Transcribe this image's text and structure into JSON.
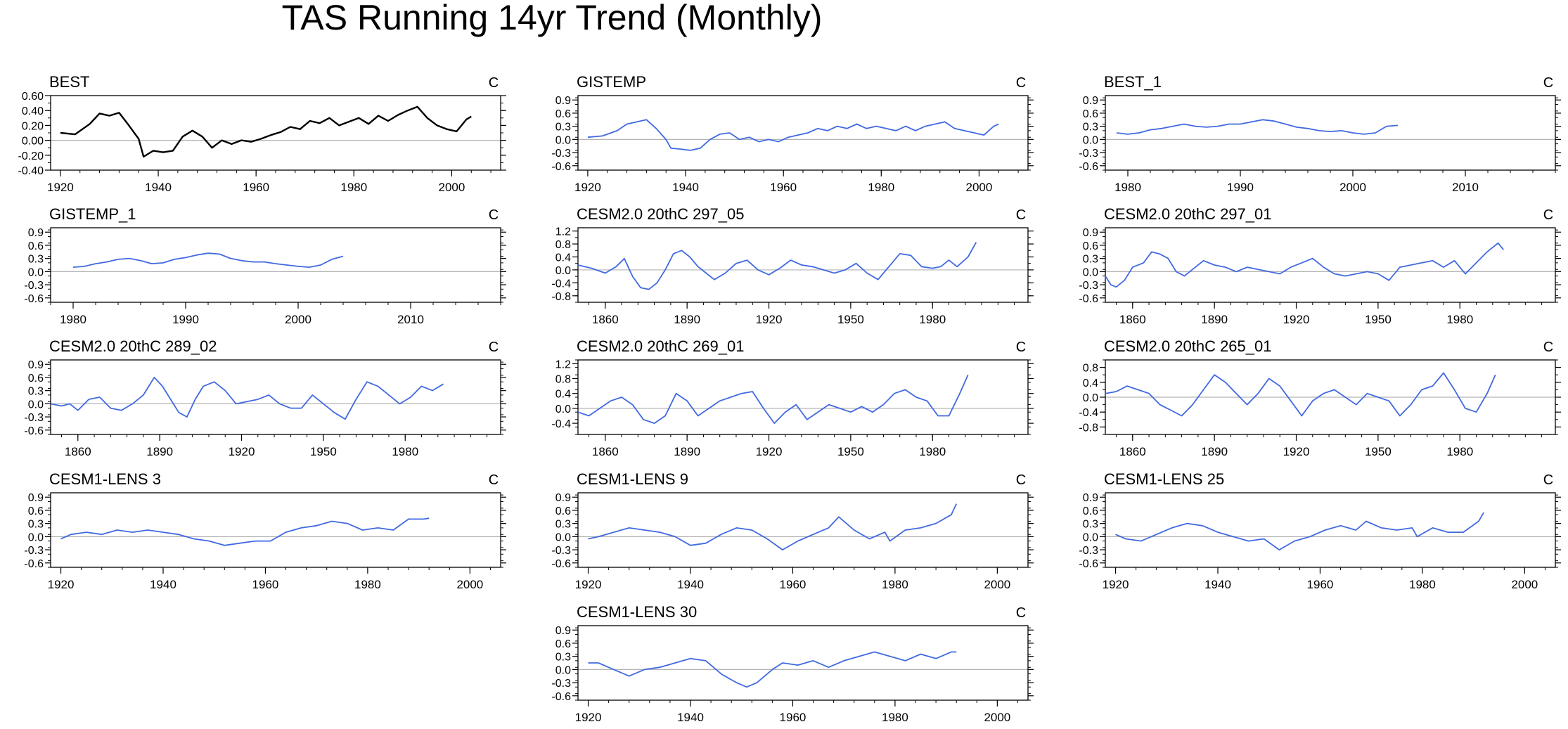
{
  "title": "TAS Running 14yr Trend (Monthly)",
  "colors": {
    "obs": "#000000",
    "model": "#4169e1",
    "zero": "#b4b4b4",
    "axis": "#000000"
  },
  "chart_data": [
    {
      "type": "line",
      "title": "BEST",
      "units": "C",
      "color": "obs",
      "xlim": [
        1918,
        2010
      ],
      "ylim": [
        -0.4,
        0.6
      ],
      "yticks": [
        -0.4,
        -0.2,
        0.0,
        0.2,
        0.4,
        0.6
      ],
      "yticklabels": [
        "-0.40",
        "-0.20",
        "0.00",
        "0.20",
        "0.40",
        "0.60"
      ],
      "xticks": [
        1920,
        1940,
        1960,
        1980,
        2000
      ],
      "x": [
        1920,
        1923,
        1926,
        1928,
        1930,
        1932,
        1934,
        1936,
        1937,
        1939,
        1941,
        1943,
        1945,
        1947,
        1949,
        1951,
        1953,
        1955,
        1957,
        1959,
        1961,
        1963,
        1965,
        1967,
        1969,
        1971,
        1973,
        1975,
        1977,
        1979,
        1981,
        1983,
        1985,
        1987,
        1989,
        1991,
        1993,
        1995,
        1997,
        1999,
        2001,
        2003,
        2004
      ],
      "y": [
        0.1,
        0.08,
        0.22,
        0.36,
        0.33,
        0.37,
        0.2,
        0.02,
        -0.22,
        -0.14,
        -0.16,
        -0.14,
        0.05,
        0.13,
        0.05,
        -0.1,
        0.0,
        -0.05,
        0.0,
        -0.02,
        0.02,
        0.07,
        0.11,
        0.18,
        0.15,
        0.26,
        0.23,
        0.3,
        0.2,
        0.25,
        0.3,
        0.22,
        0.33,
        0.26,
        0.34,
        0.4,
        0.45,
        0.3,
        0.2,
        0.15,
        0.12,
        0.28,
        0.32
      ]
    },
    {
      "type": "line",
      "title": "GISTEMP",
      "units": "C",
      "color": "model",
      "xlim": [
        1918,
        2010
      ],
      "ylim": [
        -0.7,
        1.0
      ],
      "yticks": [
        -0.6,
        -0.3,
        0.0,
        0.3,
        0.6,
        0.9
      ],
      "yticklabels": [
        "-0.6",
        "-0.3",
        "0.0",
        "0.3",
        "0.6",
        "0.9"
      ],
      "xticks": [
        1920,
        1940,
        1960,
        1980,
        2000
      ],
      "x": [
        1920,
        1923,
        1926,
        1928,
        1930,
        1932,
        1934,
        1936,
        1937,
        1939,
        1941,
        1943,
        1945,
        1947,
        1949,
        1951,
        1953,
        1955,
        1957,
        1959,
        1961,
        1963,
        1965,
        1967,
        1969,
        1971,
        1973,
        1975,
        1977,
        1979,
        1981,
        1983,
        1985,
        1987,
        1989,
        1991,
        1993,
        1995,
        1997,
        1999,
        2001,
        2003,
        2004
      ],
      "y": [
        0.05,
        0.08,
        0.2,
        0.35,
        0.4,
        0.45,
        0.25,
        0.0,
        -0.2,
        -0.22,
        -0.25,
        -0.2,
        0.0,
        0.12,
        0.15,
        0.0,
        0.05,
        -0.05,
        0.0,
        -0.05,
        0.05,
        0.1,
        0.15,
        0.25,
        0.2,
        0.3,
        0.25,
        0.35,
        0.25,
        0.3,
        0.25,
        0.2,
        0.3,
        0.2,
        0.3,
        0.35,
        0.4,
        0.25,
        0.2,
        0.15,
        0.1,
        0.3,
        0.35
      ]
    },
    {
      "type": "line",
      "title": "BEST_1",
      "units": "C",
      "color": "model",
      "xlim": [
        1978,
        2018
      ],
      "ylim": [
        -0.7,
        1.0
      ],
      "yticks": [
        -0.6,
        -0.3,
        0.0,
        0.3,
        0.6,
        0.9
      ],
      "yticklabels": [
        "-0.6",
        "-0.3",
        "0.0",
        "0.3",
        "0.6",
        "0.9"
      ],
      "xticks": [
        1980,
        1990,
        2000,
        2010
      ],
      "x": [
        1979,
        1980,
        1981,
        1982,
        1983,
        1984,
        1985,
        1986,
        1987,
        1988,
        1989,
        1990,
        1991,
        1992,
        1993,
        1994,
        1995,
        1996,
        1997,
        1998,
        1999,
        2000,
        2001,
        2002,
        2003,
        2004
      ],
      "y": [
        0.15,
        0.12,
        0.15,
        0.22,
        0.25,
        0.3,
        0.35,
        0.3,
        0.28,
        0.3,
        0.35,
        0.35,
        0.4,
        0.45,
        0.42,
        0.35,
        0.28,
        0.25,
        0.2,
        0.18,
        0.2,
        0.15,
        0.12,
        0.15,
        0.3,
        0.32
      ]
    },
    {
      "type": "line",
      "title": "GISTEMP_1",
      "units": "C",
      "color": "model",
      "xlim": [
        1978,
        2018
      ],
      "ylim": [
        -0.7,
        1.0
      ],
      "yticks": [
        -0.6,
        -0.3,
        0.0,
        0.3,
        0.6,
        0.9
      ],
      "yticklabels": [
        "-0.6",
        "-0.3",
        "0.0",
        "0.3",
        "0.6",
        "0.9"
      ],
      "xticks": [
        1980,
        1990,
        2000,
        2010
      ],
      "x": [
        1980,
        1981,
        1982,
        1983,
        1984,
        1985,
        1986,
        1987,
        1988,
        1989,
        1990,
        1991,
        1992,
        1993,
        1994,
        1995,
        1996,
        1997,
        1998,
        1999,
        2000,
        2001,
        2002,
        2003,
        2004
      ],
      "y": [
        0.1,
        0.12,
        0.18,
        0.22,
        0.28,
        0.3,
        0.25,
        0.18,
        0.2,
        0.28,
        0.32,
        0.38,
        0.42,
        0.4,
        0.3,
        0.25,
        0.22,
        0.22,
        0.18,
        0.15,
        0.12,
        0.1,
        0.15,
        0.28,
        0.35
      ]
    },
    {
      "type": "line",
      "title": "CESM2.0 20thC 297_05",
      "units": "C",
      "color": "model",
      "xlim": [
        1850,
        2015
      ],
      "ylim": [
        -1.0,
        1.3
      ],
      "yticks": [
        -0.8,
        -0.4,
        0.0,
        0.4,
        0.8,
        1.2
      ],
      "yticklabels": [
        "-0.8",
        "-0.4",
        "0.0",
        "0.4",
        "0.8",
        "1.2"
      ],
      "xticks": [
        1860,
        1890,
        1920,
        1950,
        1980
      ],
      "x": [
        1850,
        1855,
        1860,
        1864,
        1867,
        1870,
        1873,
        1876,
        1879,
        1882,
        1885,
        1888,
        1891,
        1894,
        1897,
        1900,
        1904,
        1908,
        1912,
        1916,
        1920,
        1924,
        1928,
        1932,
        1936,
        1940,
        1944,
        1948,
        1952,
        1956,
        1960,
        1964,
        1968,
        1972,
        1976,
        1980,
        1983,
        1986,
        1989,
        1993,
        1996
      ],
      "y": [
        0.15,
        0.05,
        -0.1,
        0.1,
        0.35,
        -0.2,
        -0.55,
        -0.6,
        -0.4,
        0.0,
        0.5,
        0.6,
        0.4,
        0.1,
        -0.1,
        -0.3,
        -0.1,
        0.2,
        0.3,
        0.0,
        -0.15,
        0.05,
        0.3,
        0.15,
        0.1,
        0.0,
        -0.1,
        0.0,
        0.2,
        -0.1,
        -0.3,
        0.1,
        0.5,
        0.45,
        0.1,
        0.05,
        0.1,
        0.3,
        0.1,
        0.4,
        0.85
      ]
    },
    {
      "type": "line",
      "title": "CESM2.0 20thC 297_01",
      "units": "C",
      "color": "model",
      "xlim": [
        1850,
        2015
      ],
      "ylim": [
        -0.7,
        1.0
      ],
      "yticks": [
        -0.6,
        -0.3,
        0.0,
        0.3,
        0.6,
        0.9
      ],
      "yticklabels": [
        "-0.6",
        "-0.3",
        "0.0",
        "0.3",
        "0.6",
        "0.9"
      ],
      "xticks": [
        1860,
        1890,
        1920,
        1950,
        1980
      ],
      "x": [
        1850,
        1852,
        1854,
        1857,
        1860,
        1864,
        1867,
        1870,
        1873,
        1876,
        1879,
        1882,
        1886,
        1890,
        1894,
        1898,
        1902,
        1906,
        1910,
        1914,
        1918,
        1922,
        1926,
        1930,
        1934,
        1938,
        1942,
        1946,
        1950,
        1954,
        1958,
        1962,
        1966,
        1970,
        1974,
        1978,
        1982,
        1986,
        1990,
        1994,
        1996
      ],
      "y": [
        -0.1,
        -0.3,
        -0.35,
        -0.2,
        0.1,
        0.2,
        0.45,
        0.4,
        0.3,
        0.0,
        -0.1,
        0.05,
        0.25,
        0.15,
        0.1,
        0.0,
        0.1,
        0.05,
        0.0,
        -0.05,
        0.1,
        0.2,
        0.3,
        0.1,
        -0.05,
        -0.1,
        -0.05,
        0.0,
        -0.05,
        -0.2,
        0.1,
        0.15,
        0.2,
        0.25,
        0.1,
        0.25,
        -0.05,
        0.2,
        0.45,
        0.65,
        0.5
      ]
    },
    {
      "type": "line",
      "title": "CESM2.0 20thC 289_02",
      "units": "C",
      "color": "model",
      "xlim": [
        1850,
        2015
      ],
      "ylim": [
        -0.7,
        1.0
      ],
      "yticks": [
        -0.6,
        -0.3,
        0.0,
        0.3,
        0.6,
        0.9
      ],
      "yticklabels": [
        "-0.6",
        "-0.3",
        "0.0",
        "0.3",
        "0.6",
        "0.9"
      ],
      "xticks": [
        1860,
        1890,
        1920,
        1950,
        1980
      ],
      "x": [
        1850,
        1854,
        1857,
        1860,
        1864,
        1868,
        1872,
        1876,
        1880,
        1884,
        1888,
        1891,
        1894,
        1897,
        1900,
        1903,
        1906,
        1910,
        1914,
        1918,
        1922,
        1926,
        1930,
        1934,
        1938,
        1942,
        1946,
        1950,
        1954,
        1958,
        1962,
        1966,
        1970,
        1974,
        1978,
        1982,
        1986,
        1990,
        1994
      ],
      "y": [
        0.0,
        -0.05,
        0.0,
        -0.15,
        0.1,
        0.15,
        -0.1,
        -0.15,
        0.0,
        0.2,
        0.6,
        0.4,
        0.1,
        -0.2,
        -0.3,
        0.1,
        0.4,
        0.5,
        0.3,
        0.0,
        0.05,
        0.1,
        0.2,
        0.0,
        -0.1,
        -0.1,
        0.2,
        0.0,
        -0.2,
        -0.35,
        0.1,
        0.5,
        0.4,
        0.2,
        0.0,
        0.15,
        0.4,
        0.3,
        0.45
      ]
    },
    {
      "type": "line",
      "title": "CESM2.0 20thC 269_01",
      "units": "C",
      "color": "model",
      "xlim": [
        1850,
        2015
      ],
      "ylim": [
        -0.7,
        1.3
      ],
      "yticks": [
        -0.4,
        0.0,
        0.4,
        0.8,
        1.2
      ],
      "yticklabels": [
        "-0.4",
        "0.0",
        "0.4",
        "0.8",
        "1.2"
      ],
      "xticks": [
        1860,
        1890,
        1920,
        1950,
        1980
      ],
      "x": [
        1850,
        1854,
        1858,
        1862,
        1866,
        1870,
        1874,
        1878,
        1882,
        1886,
        1890,
        1894,
        1898,
        1902,
        1906,
        1910,
        1914,
        1918,
        1922,
        1926,
        1930,
        1934,
        1938,
        1942,
        1946,
        1950,
        1954,
        1958,
        1962,
        1966,
        1970,
        1974,
        1978,
        1982,
        1986,
        1990,
        1993
      ],
      "y": [
        -0.1,
        -0.2,
        0.0,
        0.2,
        0.3,
        0.1,
        -0.3,
        -0.4,
        -0.2,
        0.4,
        0.2,
        -0.2,
        0.0,
        0.2,
        0.3,
        0.4,
        0.45,
        0.0,
        -0.4,
        -0.1,
        0.1,
        -0.3,
        -0.1,
        0.1,
        0.0,
        -0.1,
        0.05,
        -0.1,
        0.1,
        0.4,
        0.5,
        0.3,
        0.2,
        -0.2,
        -0.2,
        0.4,
        0.9
      ]
    },
    {
      "type": "line",
      "title": "CESM2.0 20thC 265_01",
      "units": "C",
      "color": "model",
      "xlim": [
        1850,
        2015
      ],
      "ylim": [
        -1.0,
        1.0
      ],
      "yticks": [
        -0.8,
        -0.4,
        0.0,
        0.4,
        0.8
      ],
      "yticklabels": [
        "-0.8",
        "-0.4",
        "0.0",
        "0.4",
        "0.8"
      ],
      "xticks": [
        1860,
        1890,
        1920,
        1950,
        1980
      ],
      "x": [
        1850,
        1854,
        1858,
        1862,
        1866,
        1870,
        1874,
        1878,
        1882,
        1886,
        1890,
        1894,
        1898,
        1902,
        1906,
        1910,
        1914,
        1918,
        1922,
        1926,
        1930,
        1934,
        1938,
        1942,
        1946,
        1950,
        1954,
        1958,
        1962,
        1966,
        1970,
        1974,
        1978,
        1982,
        1986,
        1990,
        1993
      ],
      "y": [
        0.1,
        0.15,
        0.3,
        0.2,
        0.1,
        -0.2,
        -0.35,
        -0.5,
        -0.2,
        0.2,
        0.6,
        0.4,
        0.1,
        -0.2,
        0.1,
        0.5,
        0.3,
        -0.1,
        -0.5,
        -0.1,
        0.1,
        0.2,
        0.0,
        -0.2,
        0.1,
        0.0,
        -0.1,
        -0.5,
        -0.2,
        0.2,
        0.3,
        0.65,
        0.2,
        -0.3,
        -0.4,
        0.1,
        0.6
      ]
    },
    {
      "type": "line",
      "title": "CESM1-LENS 3",
      "units": "C",
      "color": "model",
      "xlim": [
        1918,
        2006
      ],
      "ylim": [
        -0.7,
        1.0
      ],
      "yticks": [
        -0.6,
        -0.3,
        0.0,
        0.3,
        0.6,
        0.9
      ],
      "yticklabels": [
        "-0.6",
        "-0.3",
        "0.0",
        "0.3",
        "0.6",
        "0.9"
      ],
      "xticks": [
        1920,
        1940,
        1960,
        1980,
        2000
      ],
      "x": [
        1920,
        1922,
        1925,
        1928,
        1931,
        1934,
        1937,
        1940,
        1943,
        1946,
        1949,
        1952,
        1955,
        1958,
        1961,
        1964,
        1967,
        1970,
        1973,
        1976,
        1979,
        1982,
        1985,
        1988,
        1991,
        1992
      ],
      "y": [
        -0.05,
        0.05,
        0.1,
        0.05,
        0.15,
        0.1,
        0.15,
        0.1,
        0.05,
        -0.05,
        -0.1,
        -0.2,
        -0.15,
        -0.1,
        -0.1,
        0.1,
        0.2,
        0.25,
        0.35,
        0.3,
        0.15,
        0.2,
        0.15,
        0.4,
        0.4,
        0.42
      ]
    },
    {
      "type": "line",
      "title": "CESM1-LENS 9",
      "units": "C",
      "color": "model",
      "xlim": [
        1918,
        2006
      ],
      "ylim": [
        -0.7,
        1.0
      ],
      "yticks": [
        -0.6,
        -0.3,
        0.0,
        0.3,
        0.6,
        0.9
      ],
      "yticklabels": [
        "-0.6",
        "-0.3",
        "0.0",
        "0.3",
        "0.6",
        "0.9"
      ],
      "xticks": [
        1920,
        1940,
        1960,
        1980,
        2000
      ],
      "x": [
        1920,
        1922,
        1925,
        1928,
        1931,
        1934,
        1937,
        1940,
        1943,
        1946,
        1949,
        1952,
        1955,
        1958,
        1961,
        1964,
        1967,
        1969,
        1972,
        1975,
        1978,
        1979,
        1982,
        1985,
        1988,
        1991,
        1992
      ],
      "y": [
        -0.05,
        0.0,
        0.1,
        0.2,
        0.15,
        0.1,
        0.0,
        -0.2,
        -0.15,
        0.05,
        0.2,
        0.15,
        -0.05,
        -0.3,
        -0.1,
        0.05,
        0.2,
        0.45,
        0.15,
        -0.05,
        0.1,
        -0.1,
        0.15,
        0.2,
        0.3,
        0.5,
        0.75
      ]
    },
    {
      "type": "line",
      "title": "CESM1-LENS 25",
      "units": "C",
      "color": "model",
      "xlim": [
        1918,
        2006
      ],
      "ylim": [
        -0.7,
        1.0
      ],
      "yticks": [
        -0.6,
        -0.3,
        0.0,
        0.3,
        0.6,
        0.9
      ],
      "yticklabels": [
        "-0.6",
        "-0.3",
        "0.0",
        "0.3",
        "0.6",
        "0.9"
      ],
      "xticks": [
        1920,
        1940,
        1960,
        1980,
        2000
      ],
      "x": [
        1920,
        1922,
        1925,
        1928,
        1931,
        1934,
        1937,
        1940,
        1943,
        1946,
        1949,
        1952,
        1955,
        1958,
        1961,
        1964,
        1967,
        1969,
        1972,
        1975,
        1978,
        1979,
        1982,
        1985,
        1988,
        1991,
        1992
      ],
      "y": [
        0.05,
        -0.05,
        -0.1,
        0.05,
        0.2,
        0.3,
        0.25,
        0.1,
        0.0,
        -0.1,
        -0.05,
        -0.3,
        -0.1,
        0.0,
        0.15,
        0.25,
        0.15,
        0.35,
        0.2,
        0.15,
        0.2,
        0.0,
        0.2,
        0.1,
        0.1,
        0.35,
        0.55
      ]
    },
    {
      "type": "line",
      "title": "CESM1-LENS 30",
      "units": "C",
      "color": "model",
      "xlim": [
        1918,
        2006
      ],
      "ylim": [
        -0.7,
        1.0
      ],
      "yticks": [
        -0.6,
        -0.3,
        0.0,
        0.3,
        0.6,
        0.9
      ],
      "yticklabels": [
        "-0.6",
        "-0.3",
        "0.0",
        "0.3",
        "0.6",
        "0.9"
      ],
      "xticks": [
        1920,
        1940,
        1960,
        1980,
        2000
      ],
      "x": [
        1920,
        1922,
        1925,
        1928,
        1931,
        1934,
        1937,
        1940,
        1943,
        1946,
        1949,
        1951,
        1953,
        1956,
        1958,
        1961,
        1964,
        1967,
        1970,
        1973,
        1976,
        1979,
        1982,
        1985,
        1988,
        1991,
        1992
      ],
      "y": [
        0.15,
        0.15,
        0.0,
        -0.15,
        0.0,
        0.05,
        0.15,
        0.25,
        0.2,
        -0.1,
        -0.3,
        -0.4,
        -0.3,
        0.0,
        0.15,
        0.1,
        0.2,
        0.05,
        0.2,
        0.3,
        0.4,
        0.3,
        0.2,
        0.35,
        0.25,
        0.4,
        0.4
      ]
    }
  ]
}
